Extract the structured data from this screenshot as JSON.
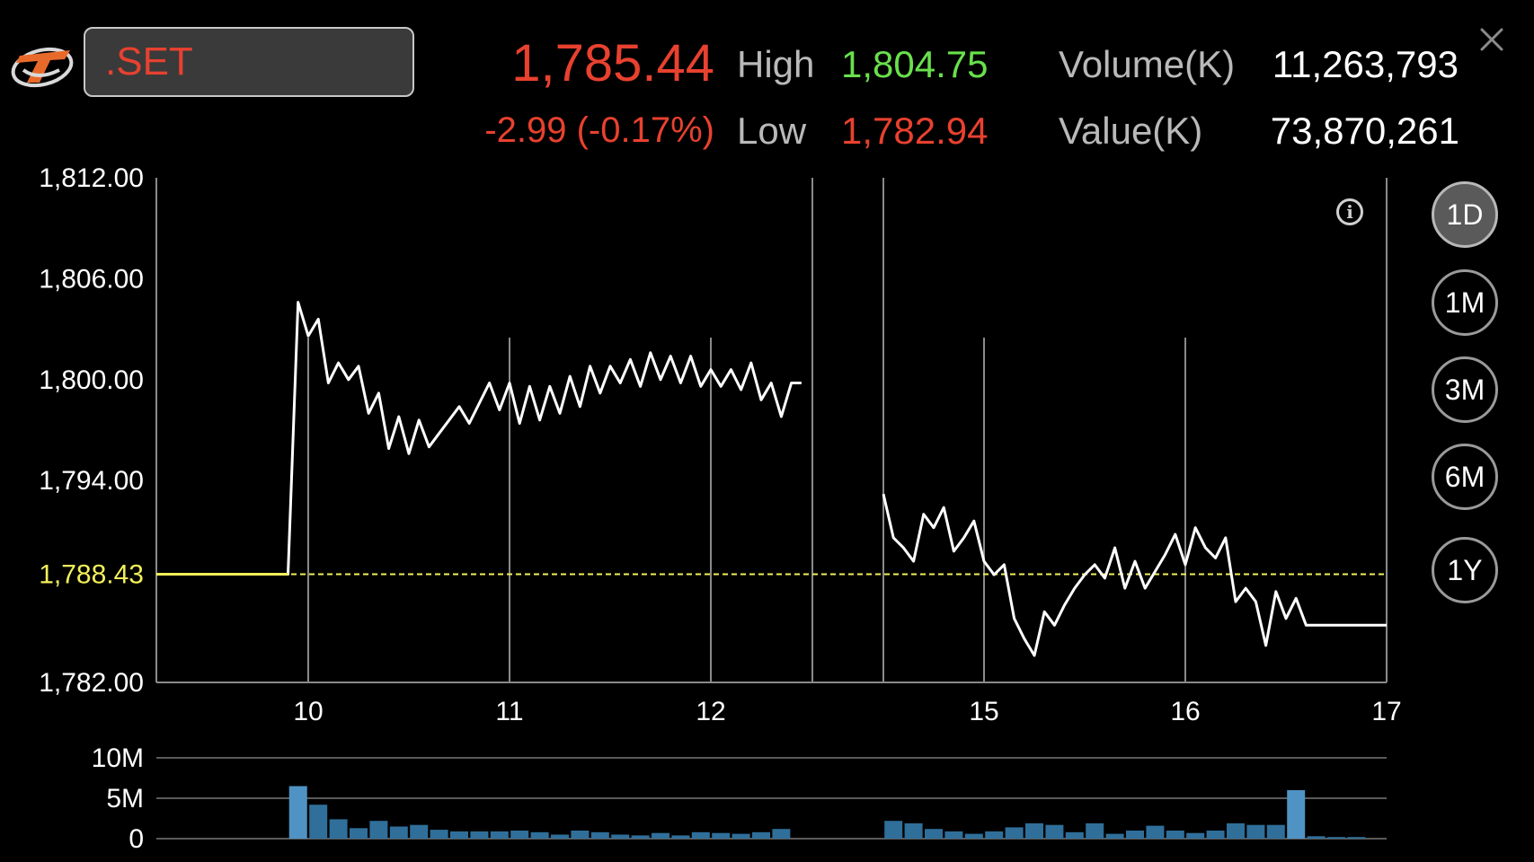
{
  "header": {
    "symbol": ".SET",
    "last_price": "1,785.44",
    "change": "-2.99 (-0.17%)",
    "high_label": "High",
    "high_value": "1,804.75",
    "low_label": "Low",
    "low_value": "1,782.94",
    "volume_label": "Volume(K)",
    "volume_value": "11,263,793",
    "value_label": "Value(K)",
    "value_value": "73,870,261"
  },
  "icons": {
    "logo": "settrade-logo",
    "close": "close-icon",
    "info": "info-icon"
  },
  "periods": [
    "1D",
    "1M",
    "3M",
    "6M",
    "1Y"
  ],
  "active_period": "1D",
  "colors": {
    "down": "#e8412f",
    "up": "#69e04c",
    "line": "#ffffff",
    "prev_close": "#f2ef5a",
    "volume_bar": "#2f6f9a",
    "volume_bar_highlight": "#4f93c4",
    "grid": "#8a8a8a"
  },
  "chart_data": [
    {
      "type": "line",
      "title": "",
      "ylim": [
        1782,
        1812
      ],
      "y_ticks": [
        "1,812.00",
        "1,806.00",
        "1,800.00",
        "1,794.00",
        "1,782.00"
      ],
      "x_ticks": [
        "10",
        "11",
        "12",
        "15",
        "16",
        "17"
      ],
      "reference_line": {
        "label": "1,788.43",
        "value": 1788.43
      },
      "grid": "vertical",
      "series": [
        {
          "segments": [
            [
              [
                9.25,
                1788.43
              ],
              [
                9.9,
                1788.43
              ],
              [
                9.95,
                1804.6
              ],
              [
                10.0,
                1802.6
              ],
              [
                10.05,
                1803.6
              ],
              [
                10.1,
                1799.8
              ],
              [
                10.15,
                1801.0
              ],
              [
                10.2,
                1800.0
              ],
              [
                10.25,
                1800.8
              ],
              [
                10.3,
                1798.0
              ],
              [
                10.35,
                1799.2
              ],
              [
                10.4,
                1795.9
              ],
              [
                10.45,
                1797.8
              ],
              [
                10.5,
                1795.6
              ],
              [
                10.55,
                1797.6
              ],
              [
                10.6,
                1796.0
              ],
              [
                10.65,
                1796.8
              ],
              [
                10.7,
                1797.6
              ],
              [
                10.75,
                1798.4
              ],
              [
                10.8,
                1797.4
              ],
              [
                10.85,
                1798.6
              ],
              [
                10.9,
                1799.8
              ],
              [
                10.95,
                1798.2
              ],
              [
                11.0,
                1799.8
              ],
              [
                11.05,
                1797.4
              ],
              [
                11.1,
                1799.6
              ],
              [
                11.15,
                1797.6
              ],
              [
                11.2,
                1799.6
              ],
              [
                11.25,
                1798.0
              ],
              [
                11.3,
                1800.2
              ],
              [
                11.35,
                1798.4
              ],
              [
                11.4,
                1800.8
              ],
              [
                11.45,
                1799.2
              ],
              [
                11.5,
                1800.8
              ],
              [
                11.55,
                1799.8
              ],
              [
                11.6,
                1801.2
              ],
              [
                11.65,
                1799.6
              ],
              [
                11.7,
                1801.6
              ],
              [
                11.75,
                1800.0
              ],
              [
                11.8,
                1801.4
              ],
              [
                11.85,
                1799.8
              ],
              [
                11.9,
                1801.4
              ],
              [
                11.95,
                1799.6
              ],
              [
                12.0,
                1800.6
              ],
              [
                12.05,
                1799.6
              ],
              [
                12.1,
                1800.6
              ],
              [
                12.15,
                1799.4
              ],
              [
                12.2,
                1801.0
              ],
              [
                12.25,
                1798.8
              ],
              [
                12.3,
                1799.8
              ],
              [
                12.35,
                1797.8
              ],
              [
                12.4,
                1799.8
              ],
              [
                12.45,
                1799.8
              ]
            ],
            [
              [
                14.5,
                1793.2
              ],
              [
                14.55,
                1790.6
              ],
              [
                14.6,
                1790.0
              ],
              [
                14.65,
                1789.2
              ],
              [
                14.7,
                1792.0
              ],
              [
                14.75,
                1791.2
              ],
              [
                14.8,
                1792.4
              ],
              [
                14.85,
                1789.8
              ],
              [
                14.9,
                1790.6
              ],
              [
                14.95,
                1791.6
              ],
              [
                15.0,
                1789.2
              ],
              [
                15.05,
                1788.4
              ],
              [
                15.1,
                1789.0
              ],
              [
                15.15,
                1785.8
              ],
              [
                15.2,
                1784.6
              ],
              [
                15.25,
                1783.6
              ],
              [
                15.3,
                1786.2
              ],
              [
                15.35,
                1785.4
              ],
              [
                15.4,
                1786.6
              ],
              [
                15.45,
                1787.6
              ],
              [
                15.5,
                1788.4
              ],
              [
                15.55,
                1789.0
              ],
              [
                15.6,
                1788.2
              ],
              [
                15.65,
                1790.0
              ],
              [
                15.7,
                1787.6
              ],
              [
                15.75,
                1789.2
              ],
              [
                15.8,
                1787.6
              ],
              [
                15.85,
                1788.6
              ],
              [
                15.9,
                1789.6
              ],
              [
                15.95,
                1790.8
              ],
              [
                16.0,
                1789.0
              ],
              [
                16.05,
                1791.2
              ],
              [
                16.1,
                1790.0
              ],
              [
                16.15,
                1789.4
              ],
              [
                16.2,
                1790.6
              ],
              [
                16.25,
                1786.8
              ],
              [
                16.3,
                1787.6
              ],
              [
                16.35,
                1786.8
              ],
              [
                16.4,
                1784.2
              ],
              [
                16.45,
                1787.4
              ],
              [
                16.5,
                1785.8
              ],
              [
                16.55,
                1787.0
              ],
              [
                16.6,
                1785.4
              ],
              [
                17.0,
                1785.4
              ]
            ]
          ]
        }
      ]
    },
    {
      "type": "bar",
      "title": "",
      "ylim": [
        0,
        10
      ],
      "y_ticks": [
        "10M",
        "5M",
        "0"
      ],
      "unit": "M",
      "groups": [
        {
          "start": 9.95,
          "step": 0.1,
          "values": [
            6.5,
            4.2,
            2.4,
            1.3,
            2.2,
            1.5,
            1.7,
            1.1,
            0.9,
            0.9,
            0.9,
            1.0,
            0.8,
            0.5,
            1.0,
            0.8,
            0.5,
            0.4,
            0.7,
            0.4,
            0.8,
            0.7,
            0.6,
            0.8,
            1.2
          ]
        },
        {
          "start": 14.55,
          "step": 0.1,
          "values": [
            2.2,
            1.9,
            1.2,
            0.9,
            0.6,
            0.9,
            1.4,
            1.9,
            1.7,
            0.8,
            1.9,
            0.6,
            1.0,
            1.6,
            1.0,
            0.7,
            1.0,
            1.9,
            1.7,
            1.7,
            6.0,
            0.3,
            0.2,
            0.2
          ]
        }
      ]
    }
  ]
}
